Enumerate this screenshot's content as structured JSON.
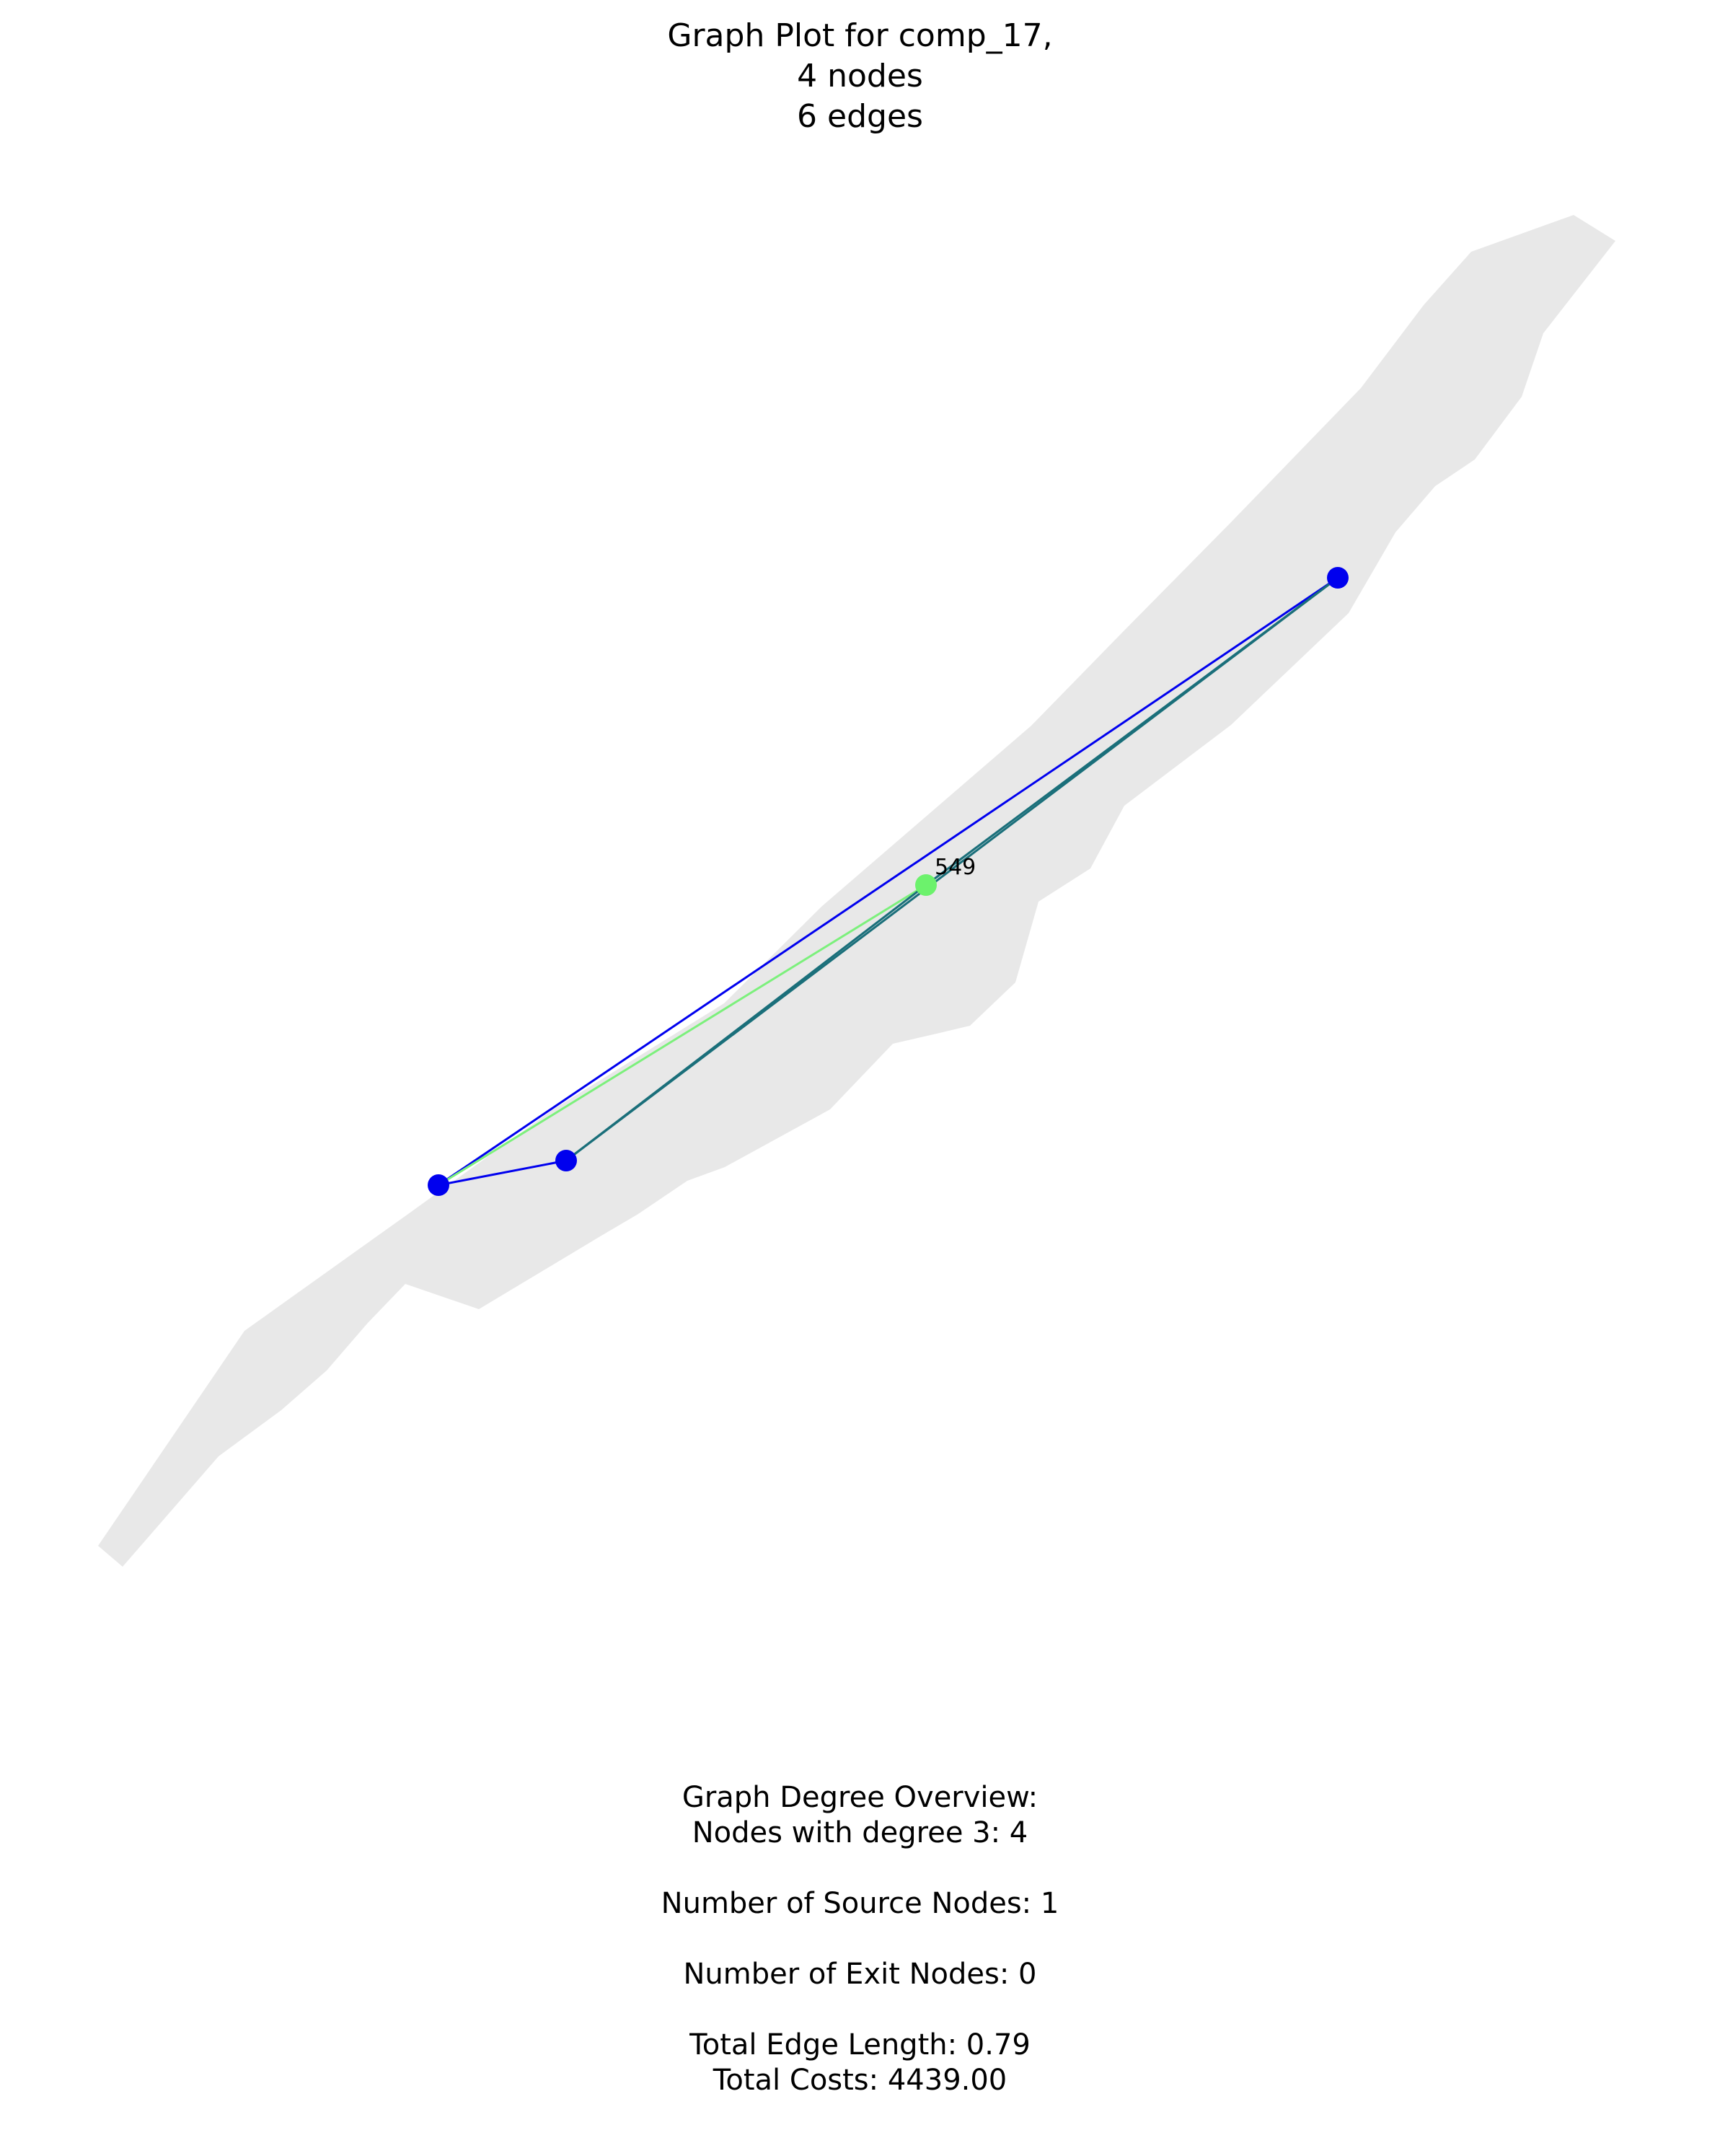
{
  "title": {
    "line1": "Graph Plot for comp_17,",
    "line2": "4 nodes",
    "line3": "6 edges"
  },
  "graph": {
    "nodes": [
      {
        "id": "a",
        "kind": "regular"
      },
      {
        "id": "b",
        "kind": "regular"
      },
      {
        "id": "549",
        "kind": "source",
        "label": "549"
      },
      {
        "id": "c",
        "kind": "regular"
      }
    ],
    "edges": [
      {
        "from": "a",
        "to": "b",
        "style": "blue"
      },
      {
        "from": "a",
        "to": "c",
        "style": "blue"
      },
      {
        "from": "a",
        "to": "549",
        "style": "green"
      },
      {
        "from": "b",
        "to": "549",
        "style": "teal"
      },
      {
        "from": "549",
        "to": "c",
        "style": "teal"
      },
      {
        "from": "b",
        "to": "c",
        "style": "teal"
      }
    ],
    "colors": {
      "region_fill": "#e8e8e8",
      "node": "#0000ee",
      "source_node": "#6cf26c",
      "edge_blue": "#0000ee",
      "edge_green": "#7cf07c",
      "edge_teal": "#1a6f7a"
    }
  },
  "overview": {
    "heading": "Graph Degree Overview:",
    "degree_line": "Nodes with degree 3: 4",
    "sources": "Number of Source Nodes: 1",
    "exits": "Number of Exit Nodes: 0",
    "edge_length": "Total Edge Length: 0.79",
    "costs": "Total Costs: 4439.00"
  }
}
